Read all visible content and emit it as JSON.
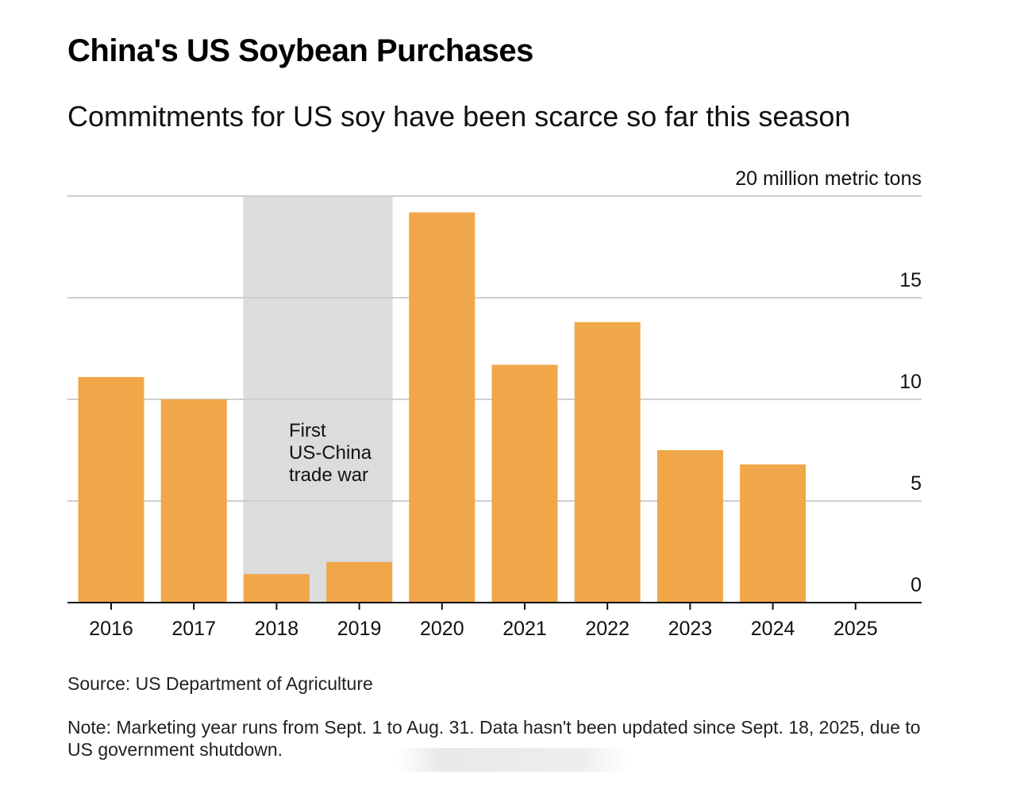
{
  "title": "China's US Soybean Purchases",
  "subtitle": "Commitments for US soy have been scarce so far this season",
  "source": "Source: US Department of Agriculture",
  "note": "Note: Marketing year runs from Sept. 1 to Aug. 31. Data hasn't been updated since Sept. 18, 2025, due to US government shutdown.",
  "colors": {
    "bar": "#F0A74A",
    "shade": "#DCDCDC",
    "grid": "#CFCFCF",
    "axis": "#111111",
    "text": "#111111"
  },
  "chart_data": {
    "type": "bar",
    "title": "China's US Soybean Purchases",
    "subtitle": "Commitments for US soy have been scarce so far this season",
    "unit_label": "20 million metric tons",
    "categories": [
      "2016",
      "2017",
      "2018",
      "2019",
      "2020",
      "2021",
      "2022",
      "2023",
      "2024",
      "2025"
    ],
    "values": [
      11.1,
      10.0,
      1.4,
      2.0,
      19.2,
      11.7,
      13.8,
      7.5,
      6.8,
      0
    ],
    "ylim": [
      0,
      20
    ],
    "yticks": [
      0,
      5,
      10,
      15,
      20
    ],
    "ytick_labels": [
      "0",
      "5",
      "10",
      "15",
      "20 million metric tons"
    ],
    "y_axis_side": "right",
    "grid": true,
    "shaded_region": {
      "from": "2018",
      "to": "2019",
      "label_lines": [
        "First",
        "US-China",
        "trade war"
      ]
    }
  }
}
